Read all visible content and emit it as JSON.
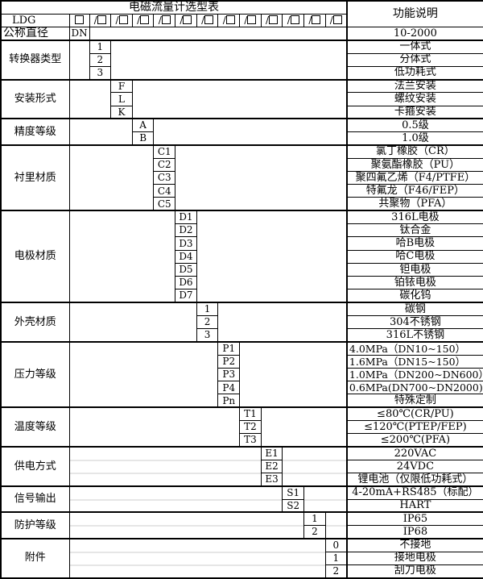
{
  "title": "电磁流量计选型表",
  "function_header": "功能说明",
  "model_row": {
    "prefix": "LDG",
    "first_box_symbol": "□",
    "repeat_box_symbol": "/□",
    "box_count": 12
  },
  "blocks": [
    {
      "label": "公称直径",
      "code_col": 1,
      "options": [
        {
          "code": "DN",
          "desc": "10-2000"
        }
      ]
    },
    {
      "label": "转换器类型",
      "code_col": 2,
      "options": [
        {
          "code": "1",
          "desc": "一体式"
        },
        {
          "code": "2",
          "desc": "分体式"
        },
        {
          "code": "3",
          "desc": "低功耗式"
        }
      ]
    },
    {
      "label": "安装形式",
      "code_col": 3,
      "options": [
        {
          "code": "F",
          "desc": "法兰安装"
        },
        {
          "code": "L",
          "desc": "螺纹安装"
        },
        {
          "code": "K",
          "desc": "卡箍安装"
        }
      ]
    },
    {
      "label": "精度等级",
      "code_col": 4,
      "options": [
        {
          "code": "A",
          "desc": "0.5级"
        },
        {
          "code": "B",
          "desc": "1.0级"
        }
      ]
    },
    {
      "label": "衬里材质",
      "code_col": 5,
      "options": [
        {
          "code": "C1",
          "desc": "氯丁橡胶（CR）"
        },
        {
          "code": "C2",
          "desc": "聚氨酯橡胶（PU）"
        },
        {
          "code": "C3",
          "desc": "聚四氟乙烯（F4/PTFE）"
        },
        {
          "code": "C4",
          "desc": "特氟龙（F46/FEP）"
        },
        {
          "code": "C5",
          "desc": "共聚物（PFA）"
        }
      ]
    },
    {
      "label": "电极材质",
      "code_col": 6,
      "options": [
        {
          "code": "D1",
          "desc": "316L电极"
        },
        {
          "code": "D2",
          "desc": "钛合金"
        },
        {
          "code": "D3",
          "desc": "哈B电极"
        },
        {
          "code": "D4",
          "desc": "哈C电极"
        },
        {
          "code": "D5",
          "desc": "钽电极"
        },
        {
          "code": "D6",
          "desc": "铂铱电极"
        },
        {
          "code": "D7",
          "desc": "碳化钨"
        }
      ]
    },
    {
      "label": "外壳材质",
      "code_col": 7,
      "options": [
        {
          "code": "1",
          "desc": "碳钢"
        },
        {
          "code": "2",
          "desc": "304不锈钢"
        },
        {
          "code": "3",
          "desc": "316L不锈钢"
        }
      ]
    },
    {
      "label": "压力等级",
      "code_col": 8,
      "options": [
        {
          "code": "P1",
          "desc": "4.0MPa（DN10~150）",
          "align": "left"
        },
        {
          "code": "P2",
          "desc": "1.6MPa（DN15~150）",
          "align": "left"
        },
        {
          "code": "P3",
          "desc": "1.0MPa（DN200~DN600）",
          "align": "left"
        },
        {
          "code": "P4",
          "desc": "0.6MPa(DN700~DN2000)",
          "align": "left"
        },
        {
          "code": "Pn",
          "desc": "特殊定制"
        }
      ]
    },
    {
      "label": "温度等级",
      "code_col": 9,
      "options": [
        {
          "code": "T1",
          "desc": "≤80℃(CR/PU)"
        },
        {
          "code": "T2",
          "desc": "≤120℃(PTEP/FEP)"
        },
        {
          "code": "T3",
          "desc": "≤200℃(PFA)"
        }
      ]
    },
    {
      "label": "供电方式",
      "code_col": 10,
      "options": [
        {
          "code": "E1",
          "desc": "220VAC"
        },
        {
          "code": "E2",
          "desc": "24VDC"
        },
        {
          "code": "E3",
          "desc": "锂电池（仅限低功耗式）"
        }
      ]
    },
    {
      "label": "信号输出",
      "code_col": 11,
      "options": [
        {
          "code": "S1",
          "desc": "4-20mA+RS485（标配）"
        },
        {
          "code": "S2",
          "desc": "HART"
        }
      ]
    },
    {
      "label": "防护等级",
      "code_col": 12,
      "options": [
        {
          "code": "1",
          "desc": "IP65"
        },
        {
          "code": "2",
          "desc": "IP68"
        }
      ]
    },
    {
      "label": "附件",
      "code_col": 13,
      "options": [
        {
          "code": "0",
          "desc": "不接地"
        },
        {
          "code": "1",
          "desc": "接地电极"
        },
        {
          "code": "2",
          "desc": "刮刀电极"
        }
      ]
    }
  ]
}
